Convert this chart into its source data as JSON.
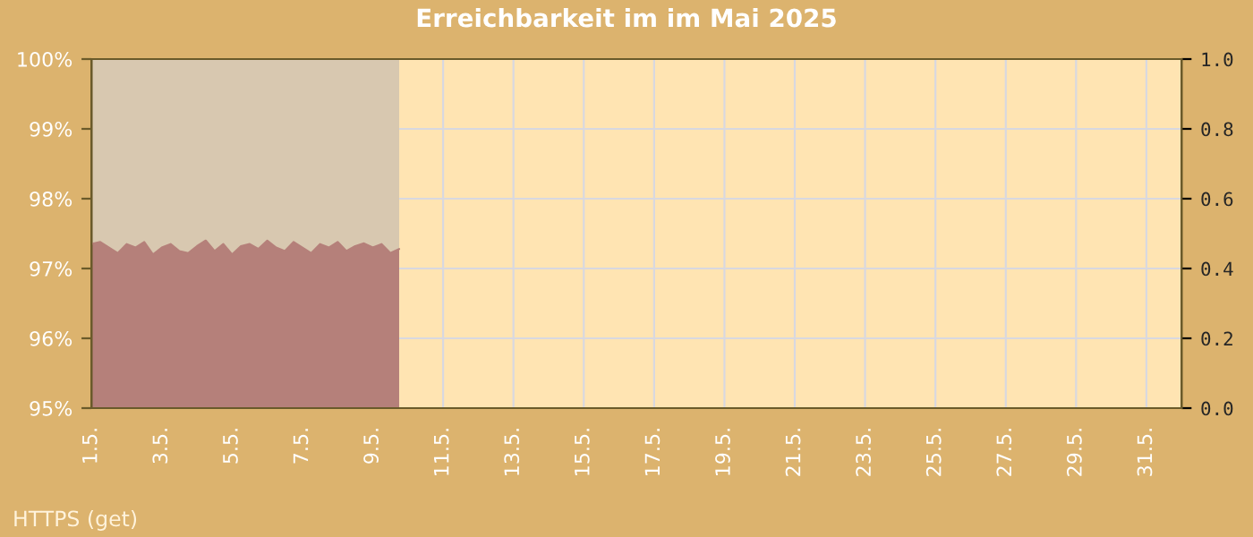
{
  "chart_data": {
    "type": "area",
    "title": "Erreichbarkeit im im Mai 2025",
    "series": [
      {
        "color": "#d8c8b0",
        "x": [
          "2025-05-01T00:00",
          "2025-05-09T18:00"
        ],
        "values": [
          100,
          100
        ]
      },
      {
        "color": "#b5807a",
        "x": [
          "2025-05-01T00:00",
          "2025-05-01T06:00",
          "2025-05-01T12:00",
          "2025-05-01T18:00",
          "2025-05-02T00:00",
          "2025-05-02T06:00",
          "2025-05-02T12:00",
          "2025-05-02T18:00",
          "2025-05-03T00:00",
          "2025-05-03T06:00",
          "2025-05-03T12:00",
          "2025-05-03T18:00",
          "2025-05-04T00:00",
          "2025-05-04T06:00",
          "2025-05-04T12:00",
          "2025-05-04T18:00",
          "2025-05-05T00:00",
          "2025-05-05T06:00",
          "2025-05-05T12:00",
          "2025-05-05T18:00",
          "2025-05-06T00:00",
          "2025-05-06T06:00",
          "2025-05-06T12:00",
          "2025-05-06T18:00",
          "2025-05-07T00:00",
          "2025-05-07T06:00",
          "2025-05-07T12:00",
          "2025-05-07T18:00",
          "2025-05-08T00:00",
          "2025-05-08T06:00",
          "2025-05-08T12:00",
          "2025-05-08T18:00",
          "2025-05-09T00:00",
          "2025-05-09T06:00",
          "2025-05-09T12:00",
          "2025-05-09T18:00"
        ],
        "values": [
          97.35,
          97.38,
          97.3,
          97.22,
          97.35,
          97.3,
          97.38,
          97.2,
          97.3,
          97.35,
          97.25,
          97.22,
          97.32,
          97.4,
          97.25,
          97.35,
          97.2,
          97.32,
          97.35,
          97.28,
          97.4,
          97.3,
          97.25,
          97.38,
          97.3,
          97.22,
          97.35,
          97.3,
          97.38,
          97.25,
          97.32,
          97.36,
          97.3,
          97.35,
          97.22,
          97.28
        ]
      }
    ],
    "xlim": [
      "2025-05-01",
      "2025-06-01"
    ],
    "xticks": [
      {
        "value": "2025-05-01",
        "label": "1.5."
      },
      {
        "value": "2025-05-03",
        "label": "3.5."
      },
      {
        "value": "2025-05-05",
        "label": "5.5."
      },
      {
        "value": "2025-05-07",
        "label": "7.5."
      },
      {
        "value": "2025-05-09",
        "label": "9.5."
      },
      {
        "value": "2025-05-11",
        "label": "11.5."
      },
      {
        "value": "2025-05-13",
        "label": "13.5."
      },
      {
        "value": "2025-05-15",
        "label": "15.5."
      },
      {
        "value": "2025-05-17",
        "label": "17.5."
      },
      {
        "value": "2025-05-19",
        "label": "19.5."
      },
      {
        "value": "2025-05-21",
        "label": "21.5."
      },
      {
        "value": "2025-05-23",
        "label": "23.5."
      },
      {
        "value": "2025-05-25",
        "label": "25.5."
      },
      {
        "value": "2025-05-27",
        "label": "27.5."
      },
      {
        "value": "2025-05-29",
        "label": "29.5."
      },
      {
        "value": "2025-05-31",
        "label": "31.5."
      }
    ],
    "ylim": [
      95,
      100
    ],
    "yticks": [
      {
        "value": 95,
        "label": "95%"
      },
      {
        "value": 96,
        "label": "96%"
      },
      {
        "value": 97,
        "label": "97%"
      },
      {
        "value": 98,
        "label": "98%"
      },
      {
        "value": 99,
        "label": "99%"
      },
      {
        "value": 100,
        "label": "100%"
      }
    ],
    "y2lim": [
      0,
      1
    ],
    "y2ticks": [
      {
        "value": 0,
        "label": "0.0"
      },
      {
        "value": 0.2,
        "label": "0.2"
      },
      {
        "value": 0.4,
        "label": "0.4"
      },
      {
        "value": 0.6,
        "label": "0.6"
      },
      {
        "value": 0.8,
        "label": "0.8"
      },
      {
        "value": 1,
        "label": "1.0"
      }
    ],
    "grid": true,
    "annotations": [
      "HTTPS (get)"
    ]
  }
}
